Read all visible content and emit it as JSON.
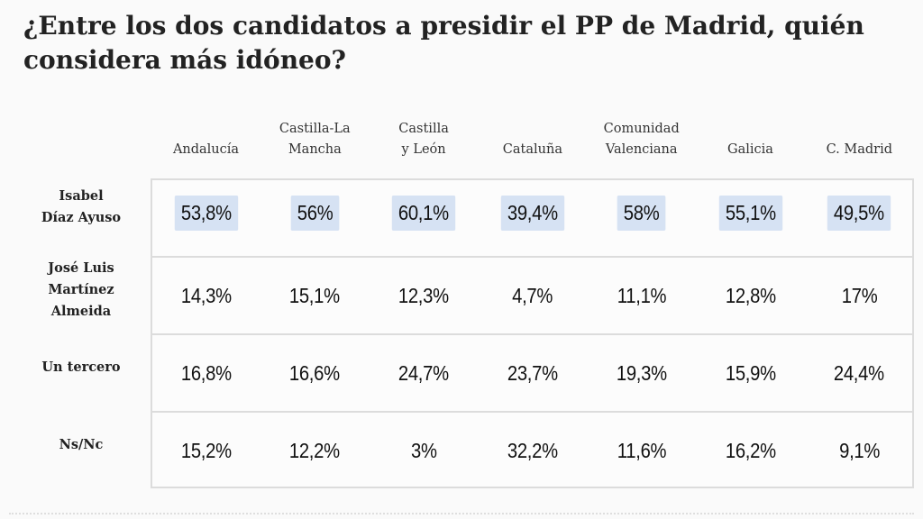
{
  "title": "¿Entre los dos candidatos a presidir el PP de Madrid, quién considera más idóneo?",
  "chart_data": {
    "type": "table",
    "title": "¿Entre los dos candidatos a presidir el PP de Madrid, quién considera más idóneo?",
    "columns": [
      "Andalucía",
      "Castilla-La Mancha",
      "Castilla y León",
      "Cataluña",
      "Comunidad Valenciana",
      "Galicia",
      "C. Madrid"
    ],
    "column_lines": [
      [
        "Andalucía"
      ],
      [
        "Castilla-La",
        "Mancha"
      ],
      [
        "Castilla",
        "y León"
      ],
      [
        "Cataluña"
      ],
      [
        "Comunidad",
        "Valenciana"
      ],
      [
        "Galicia"
      ],
      [
        "C. Madrid"
      ]
    ],
    "rows": [
      {
        "label": "Isabel Díaz Ayuso",
        "label_lines": [
          "Isabel",
          "Díaz Ayuso"
        ],
        "highlight": true,
        "values": [
          "53,8%",
          "56%",
          "60,1%",
          "39,4%",
          "58%",
          "55,1%",
          "49,5%"
        ]
      },
      {
        "label": "José Luis Martínez Almeida",
        "label_lines": [
          "José Luis",
          "Martínez",
          "Almeida"
        ],
        "highlight": false,
        "values": [
          "14,3%",
          "15,1%",
          "12,3%",
          "4,7%",
          "11,1%",
          "12,8%",
          "17%"
        ]
      },
      {
        "label": "Un tercero",
        "label_lines": [
          "Un tercero"
        ],
        "highlight": false,
        "values": [
          "16,8%",
          "16,6%",
          "24,7%",
          "23,7%",
          "19,3%",
          "15,9%",
          "24,4%"
        ]
      },
      {
        "label": "Ns/Nc",
        "label_lines": [
          "Ns/Nc"
        ],
        "highlight": false,
        "values": [
          "15,2%",
          "12,2%",
          "3%",
          "32,2%",
          "11,6%",
          "16,2%",
          "9,1%"
        ]
      }
    ],
    "highlight_color": "#d6e2f3"
  }
}
